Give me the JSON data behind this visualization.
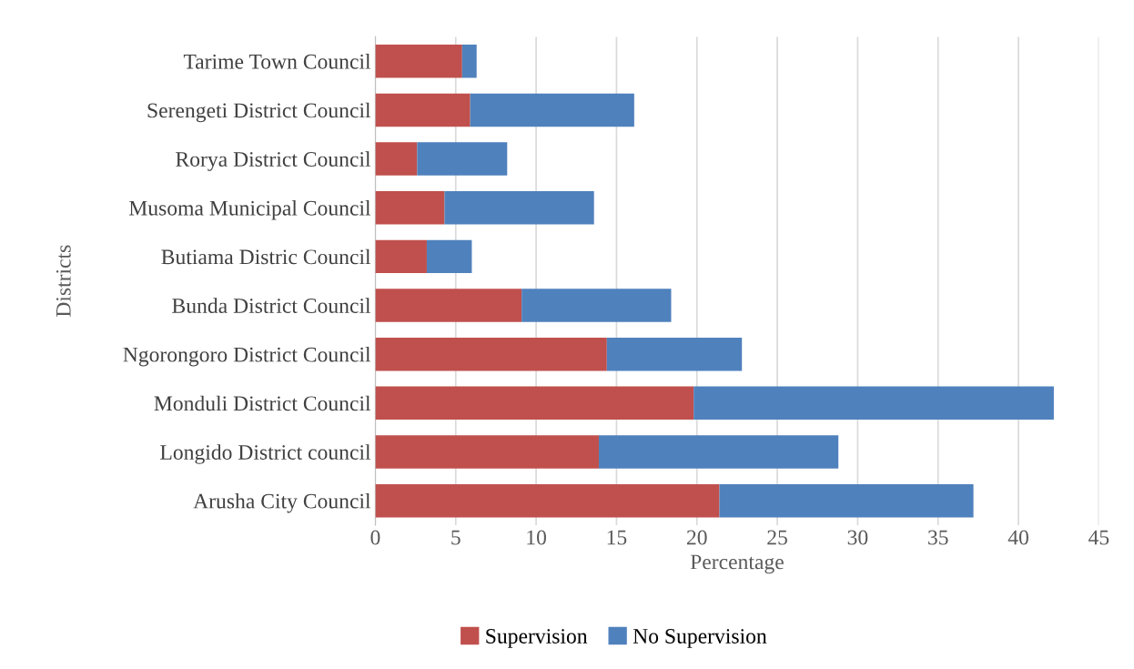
{
  "chart_data": {
    "type": "bar",
    "orientation": "horizontal",
    "stacked": true,
    "xlabel": "Percentage",
    "ylabel": "Districts",
    "categories": [
      "Tarime Town Council",
      "Serengeti District Council",
      "Rorya District Council",
      "Musoma Municipal Council",
      "Butiama Distric Council",
      "Bunda District Council",
      "Ngorongoro District Council",
      "Monduli District Council",
      "Longido District council",
      "Arusha City Council"
    ],
    "series": [
      {
        "name": "Supervision",
        "color": "#c0504d",
        "values": [
          5.4,
          5.9,
          2.6,
          4.3,
          3.2,
          9.1,
          14.4,
          19.8,
          13.9,
          21.4
        ]
      },
      {
        "name": "No Supervision",
        "color": "#4f81bd",
        "values": [
          0.9,
          10.2,
          5.6,
          9.3,
          2.8,
          9.3,
          8.4,
          22.4,
          14.9,
          15.8
        ]
      }
    ],
    "xlim": [
      0,
      45
    ],
    "xticks": [
      0,
      5,
      10,
      15,
      20,
      25,
      30,
      35,
      40,
      45
    ],
    "grid": "x",
    "legend": "bottom"
  }
}
